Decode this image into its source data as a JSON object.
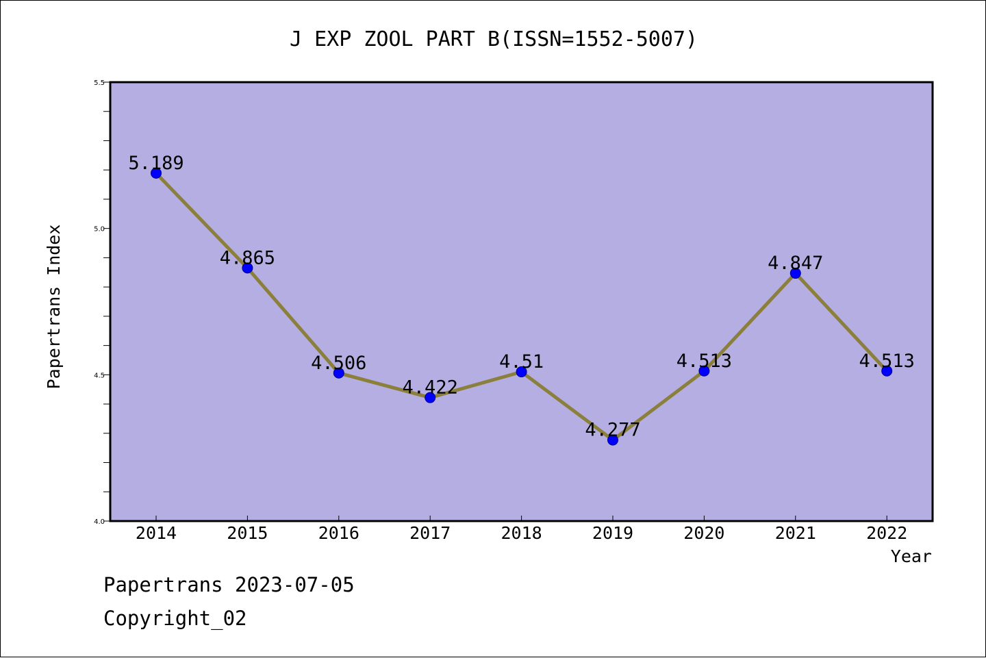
{
  "chart_data": {
    "type": "line",
    "title": "J EXP ZOOL PART B(ISSN=1552-5007)",
    "xlabel": "Year",
    "ylabel": "Papertrans Index",
    "categories": [
      "2014",
      "2015",
      "2016",
      "2017",
      "2018",
      "2019",
      "2020",
      "2021",
      "2022"
    ],
    "values": [
      5.189,
      4.865,
      4.506,
      4.422,
      4.51,
      4.277,
      4.513,
      4.847,
      4.513
    ],
    "data_labels": [
      "5.189",
      "4.865",
      "4.506",
      "4.422",
      "4.51",
      "4.277",
      "4.513",
      "4.847",
      "4.513"
    ],
    "ylim": [
      4.0,
      5.5
    ],
    "yticks": [
      "4.0",
      "4.5",
      "5.0",
      "5.5"
    ],
    "grid": false,
    "colors": {
      "plot_background": "#b5aee2",
      "line": "#8b7f3c",
      "marker": "#0000ff",
      "axis": "#000000"
    }
  },
  "footer": {
    "line1": "Papertrans 2023-07-05",
    "line2": "Copyright_02"
  }
}
